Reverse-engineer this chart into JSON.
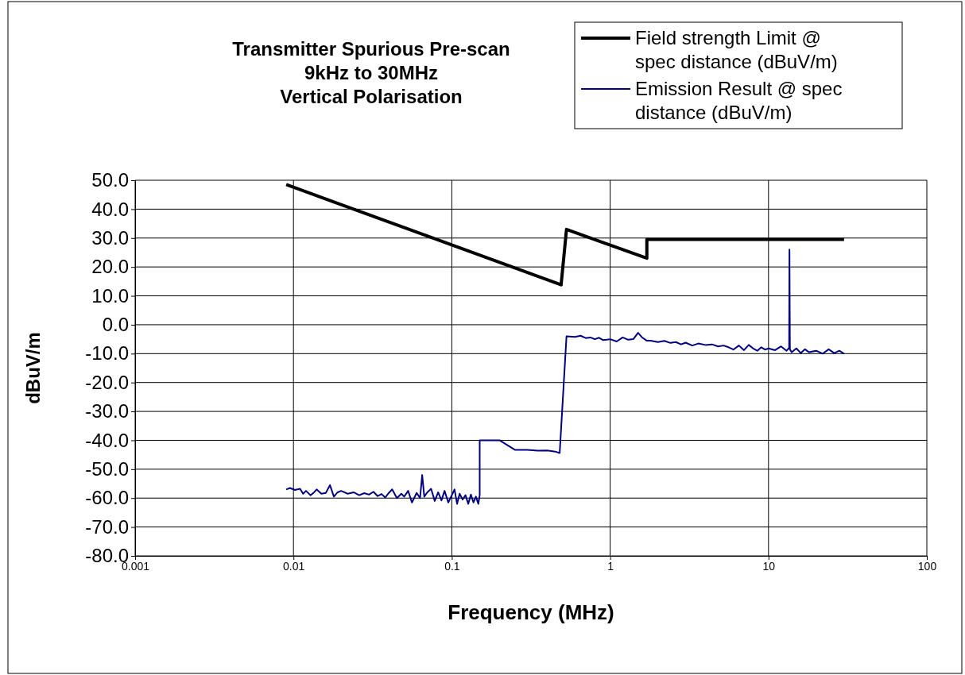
{
  "chart_data": {
    "type": "line",
    "title": "Transmitter Spurious Pre-scan\n9kHz to 30MHz\nVertical Polarisation",
    "xlabel": "Frequency (MHz)",
    "ylabel": "dBuV/m",
    "log": "x",
    "grid": true,
    "legend": "top right",
    "marker": "none",
    "xlim": [
      0.001,
      100
    ],
    "xticks": [
      0.001,
      0.01,
      0.1,
      1,
      10,
      100
    ],
    "ylim": [
      -80,
      50
    ],
    "yticks": [
      {
        "value": 50,
        "label": "50.0"
      },
      {
        "value": 40,
        "label": "40.0"
      },
      {
        "value": 30,
        "label": "30.0"
      },
      {
        "value": 20,
        "label": "20.0"
      },
      {
        "value": 10,
        "label": "10.0"
      },
      {
        "value": 0,
        "label": "0.0"
      },
      {
        "value": -10,
        "label": "-10.0"
      },
      {
        "value": -20,
        "label": "-20.0"
      },
      {
        "value": -30,
        "label": "-30.0"
      },
      {
        "value": -40,
        "label": "-40.0"
      },
      {
        "value": -50,
        "label": "-50.0"
      },
      {
        "value": -60,
        "label": "-60.0"
      },
      {
        "value": -70,
        "label": "-70.0"
      },
      {
        "value": -80,
        "label": "-80.0"
      }
    ],
    "series": [
      {
        "name": "Field strength Limit @ spec distance (dBuV/m)",
        "color": "#000000",
        "x": [
          0.009,
          0.49,
          0.53,
          1.705,
          1.705,
          30
        ],
        "values": [
          48.5,
          13.8,
          33,
          23,
          29.5,
          29.5
        ]
      },
      {
        "name": "Emission Result @ spec distance (dBuV/m)",
        "color": "#000080",
        "x": [
          0.009,
          0.0095,
          0.0102,
          0.011,
          0.0115,
          0.012,
          0.0128,
          0.0135,
          0.014,
          0.015,
          0.016,
          0.017,
          0.018,
          0.019,
          0.02,
          0.022,
          0.024,
          0.026,
          0.028,
          0.03,
          0.032,
          0.034,
          0.036,
          0.038,
          0.04,
          0.042,
          0.045,
          0.048,
          0.05,
          0.053,
          0.056,
          0.06,
          0.063,
          0.065,
          0.067,
          0.07,
          0.074,
          0.078,
          0.082,
          0.086,
          0.09,
          0.095,
          0.1,
          0.104,
          0.108,
          0.112,
          0.117,
          0.122,
          0.127,
          0.132,
          0.137,
          0.142,
          0.147,
          0.15,
          0.15,
          0.2,
          0.25,
          0.3,
          0.35,
          0.4,
          0.45,
          0.48,
          0.53,
          0.6,
          0.65,
          0.7,
          0.75,
          0.8,
          0.85,
          0.9,
          0.95,
          1,
          1.1,
          1.2,
          1.3,
          1.4,
          1.5,
          1.6,
          1.7,
          1.8,
          2,
          2.2,
          2.4,
          2.6,
          2.8,
          3,
          3.3,
          3.6,
          4,
          4.4,
          4.8,
          5.2,
          5.6,
          6,
          6.5,
          7,
          7.5,
          8,
          8.5,
          9,
          9.5,
          10,
          11,
          12,
          13,
          13.5,
          13.56,
          13.65,
          14,
          15,
          16,
          17,
          18,
          20,
          22,
          24,
          26,
          28,
          30
        ],
        "values": [
          -57,
          -56.5,
          -57.2,
          -56.8,
          -58.5,
          -57.5,
          -59,
          -58,
          -57,
          -58.5,
          -58.2,
          -55.5,
          -59.5,
          -58,
          -57.5,
          -58.5,
          -58,
          -59,
          -58.3,
          -58.8,
          -57.8,
          -59.3,
          -58.6,
          -59.8,
          -58.2,
          -57,
          -60,
          -58.5,
          -59.5,
          -57.5,
          -61.5,
          -58.2,
          -60,
          -52,
          -59.5,
          -58,
          -56.8,
          -61,
          -58,
          -60.8,
          -57.5,
          -61.5,
          -59,
          -57,
          -62,
          -58.5,
          -60.5,
          -59,
          -62,
          -58.8,
          -61.5,
          -59.5,
          -62,
          -59,
          -40,
          -40,
          -43.3,
          -43.3,
          -43.6,
          -43.5,
          -43.9,
          -44.4,
          -4,
          -4.2,
          -3.8,
          -4.6,
          -4.4,
          -5,
          -4.5,
          -5.3,
          -5.2,
          -5,
          -5.8,
          -4.4,
          -5.2,
          -5,
          -2.8,
          -4.5,
          -5.5,
          -5.5,
          -6,
          -5.6,
          -6.3,
          -6,
          -6.8,
          -6.2,
          -7.2,
          -6.5,
          -7,
          -6.8,
          -7.5,
          -7.2,
          -7.8,
          -8.6,
          -7.2,
          -8.8,
          -7,
          -8.2,
          -9,
          -7.8,
          -8.6,
          -8.2,
          -8.8,
          -7.5,
          -9,
          -8,
          26,
          -8.5,
          -9.5,
          -8.2,
          -9.8,
          -8.5,
          -9.5,
          -9,
          -10,
          -8.5,
          -9.8,
          -9,
          -10
        ]
      }
    ]
  }
}
